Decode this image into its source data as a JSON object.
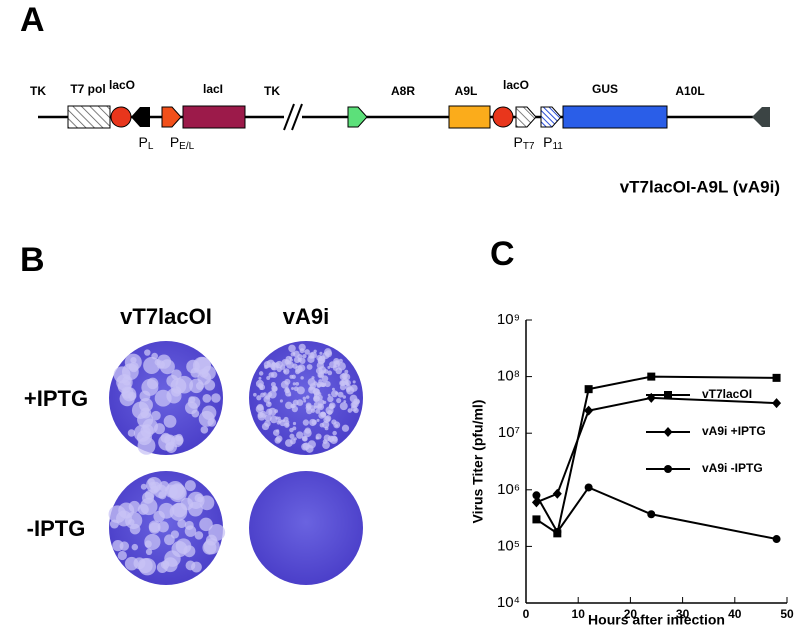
{
  "panel_a": {
    "label": "A",
    "gene_labels": [
      "TK",
      "T7 pol",
      "lacO",
      "lacI",
      "TK",
      "A8R",
      "A9L",
      "lacO",
      "GUS",
      "A10L"
    ],
    "promoters": [
      {
        "letter": "P",
        "sub": "L"
      },
      {
        "letter": "P",
        "sub": "E/L"
      },
      {
        "letter": "P",
        "sub": "T7"
      },
      {
        "letter": "P",
        "sub": "11"
      }
    ],
    "caption": "vT7lacOI-A9L (vA9i)"
  },
  "panel_b": {
    "label": "B",
    "columns": [
      "vT7lacOI",
      "vA9i"
    ],
    "rows": [
      "+IPTG",
      "-IPTG"
    ]
  },
  "chart_data": {
    "type": "line",
    "label": "C",
    "x_label": "Hours after infection",
    "y_label": "Virus Titer (pfu/ml)",
    "x": [
      2,
      6,
      12,
      24,
      48
    ],
    "series": [
      {
        "name": "vT7lacOI",
        "color": "#000000",
        "marker": "square",
        "values": [
          300000,
          170000,
          60000000,
          100000000,
          95000000
        ]
      },
      {
        "name": "vA9i +IPTG",
        "color": "#000000",
        "marker": "diamond",
        "values": [
          600000,
          850000,
          25000000,
          42000000,
          34000000
        ]
      },
      {
        "name": "vA9i  -IPTG",
        "color": "#000000",
        "marker": "circle",
        "values": [
          800000,
          180000,
          1100000,
          370000,
          135000
        ]
      }
    ],
    "xlim": [
      0,
      50
    ],
    "xticks": [
      0,
      10,
      20,
      30,
      40,
      50
    ],
    "ylim": [
      10000,
      1000000000
    ],
    "log_y": true,
    "yticks": [
      {
        "value": 10000,
        "label": "10⁴"
      },
      {
        "value": 100000,
        "label": "10⁵"
      },
      {
        "value": 1000000,
        "label": "10⁶"
      },
      {
        "value": 10000000,
        "label": "10⁷"
      },
      {
        "value": 100000000,
        "label": "10⁸"
      },
      {
        "value": 1000000000,
        "label": "10⁹"
      }
    ]
  }
}
